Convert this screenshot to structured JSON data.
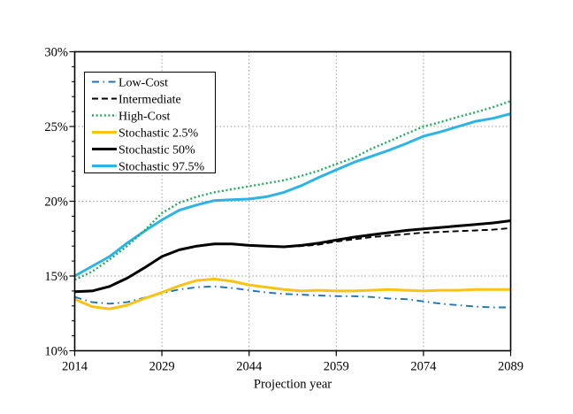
{
  "chart_data": {
    "type": "line",
    "title": "",
    "xlabel": "Projection year",
    "ylabel": "",
    "xlim": [
      2014,
      2089
    ],
    "ylim": [
      10,
      30
    ],
    "xticks": [
      2014,
      2029,
      2044,
      2059,
      2074,
      2089
    ],
    "yticks": [
      10,
      15,
      20,
      25,
      30
    ],
    "ytick_suffix": "%",
    "y_minor_step": 1,
    "grid": "dotted gray at major x and y gridlines",
    "legend_position": "upper-left-inside",
    "x": [
      2014,
      2017,
      2020,
      2023,
      2026,
      2029,
      2032,
      2035,
      2038,
      2041,
      2044,
      2047,
      2050,
      2053,
      2056,
      2059,
      2062,
      2065,
      2068,
      2071,
      2074,
      2077,
      2080,
      2083,
      2086,
      2089
    ],
    "series": [
      {
        "name": "Low-Cost",
        "color": "#1E73B9",
        "style": "dashdot",
        "width": 1.9,
        "values": [
          13.6,
          13.25,
          13.15,
          13.25,
          13.55,
          13.85,
          14.1,
          14.25,
          14.3,
          14.2,
          14.05,
          13.9,
          13.8,
          13.75,
          13.7,
          13.65,
          13.65,
          13.6,
          13.5,
          13.45,
          13.3,
          13.15,
          13.05,
          12.95,
          12.9,
          12.9
        ]
      },
      {
        "name": "Intermediate",
        "color": "#000000",
        "style": "dashed",
        "width": 1.9,
        "values": [
          13.95,
          14.0,
          14.3,
          14.85,
          15.55,
          16.3,
          16.75,
          17.0,
          17.15,
          17.15,
          17.05,
          17.0,
          16.95,
          17.0,
          17.1,
          17.3,
          17.45,
          17.6,
          17.7,
          17.8,
          17.9,
          17.95,
          18.0,
          18.05,
          18.1,
          18.2
        ]
      },
      {
        "name": "High-Cost",
        "color": "#22AC60",
        "style": "dotted",
        "width": 2.4,
        "values": [
          14.75,
          15.3,
          16.1,
          17.0,
          18.05,
          19.2,
          19.9,
          20.3,
          20.6,
          20.8,
          21.0,
          21.2,
          21.4,
          21.7,
          22.05,
          22.5,
          22.9,
          23.5,
          24.0,
          24.5,
          25.0,
          25.3,
          25.65,
          25.95,
          26.3,
          26.7
        ]
      },
      {
        "name": "Stochastic 2.5%",
        "color": "#FBC311",
        "style": "solid",
        "width": 3.0,
        "values": [
          13.45,
          12.95,
          12.8,
          13.05,
          13.5,
          13.9,
          14.35,
          14.7,
          14.8,
          14.65,
          14.4,
          14.25,
          14.1,
          14.0,
          14.05,
          14.0,
          14.0,
          14.05,
          14.1,
          14.05,
          14.0,
          14.05,
          14.05,
          14.1,
          14.1,
          14.1
        ]
      },
      {
        "name": "Stochastic 50%",
        "color": "#000000",
        "style": "solid",
        "width": 3.0,
        "values": [
          13.95,
          14.0,
          14.3,
          14.85,
          15.55,
          16.3,
          16.75,
          17.0,
          17.15,
          17.15,
          17.05,
          17.0,
          16.95,
          17.05,
          17.2,
          17.4,
          17.6,
          17.75,
          17.9,
          18.05,
          18.15,
          18.25,
          18.35,
          18.45,
          18.55,
          18.7
        ]
      },
      {
        "name": "Stochastic 97.5%",
        "color": "#2DB4E6",
        "style": "solid",
        "width": 3.0,
        "values": [
          15.0,
          15.65,
          16.3,
          17.2,
          18.0,
          18.75,
          19.4,
          19.75,
          20.05,
          20.1,
          20.15,
          20.3,
          20.6,
          21.05,
          21.6,
          22.1,
          22.6,
          23.0,
          23.4,
          23.85,
          24.35,
          24.65,
          25.0,
          25.35,
          25.55,
          25.85
        ]
      }
    ],
    "colors": {
      "grid": "#999999",
      "frame": "#000000",
      "background": "#ffffff"
    }
  }
}
